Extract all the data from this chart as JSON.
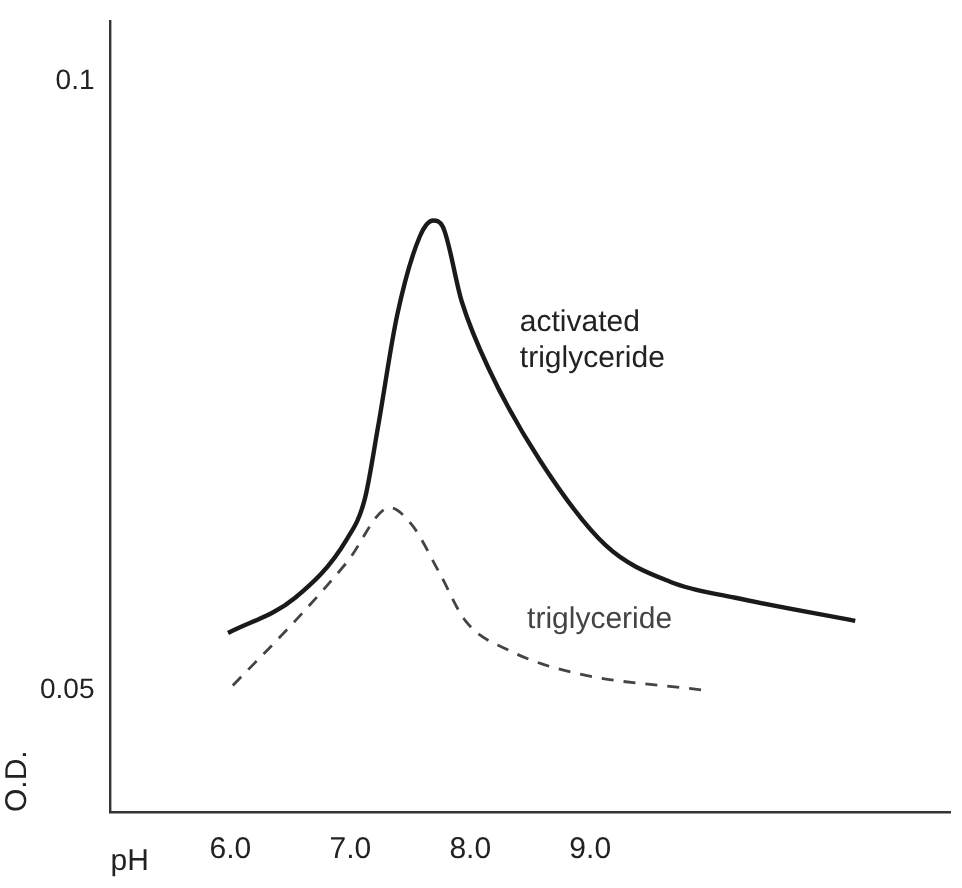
{
  "chart_data": {
    "type": "line",
    "xlabel": "pH",
    "ylabel": "O.D.",
    "xlim": [
      5.0,
      12.0
    ],
    "xticks": [
      {
        "value": 6,
        "label": "6.0"
      },
      {
        "value": 7,
        "label": "7.0"
      },
      {
        "value": 8,
        "label": "8.0"
      },
      {
        "value": 9,
        "label": "9.0"
      }
    ],
    "ylim": [
      0.04,
      0.105
    ],
    "yticks": [
      0.05,
      0.1
    ],
    "grid": false,
    "legend": false,
    "marker": "none",
    "series": [
      {
        "name": "activated triglyceride",
        "color": "#1a1a1a",
        "line_style": "solid",
        "x": [
          5.98,
          6.54,
          6.97,
          7.12,
          7.23,
          7.39,
          7.58,
          7.69,
          7.77,
          7.93,
          8.15,
          8.58,
          9.13,
          9.67,
          10.21,
          11.21
        ],
        "values": [
          0.0547,
          0.0576,
          0.0624,
          0.0657,
          0.0716,
          0.0808,
          0.0873,
          0.0886,
          0.0881,
          0.0819,
          0.0765,
          0.0689,
          0.0619,
          0.0589,
          0.0576,
          0.0557
        ]
      },
      {
        "name": "triglyceride",
        "color": "#444444",
        "line_style": "dashed",
        "x": [
          6.02,
          6.54,
          6.97,
          7.33,
          7.52,
          7.74,
          7.96,
          8.34,
          8.88,
          9.95
        ],
        "values": [
          0.0504,
          0.0557,
          0.0605,
          0.065,
          0.0635,
          0.0597,
          0.0557,
          0.0532,
          0.0514,
          0.05
        ]
      }
    ]
  }
}
